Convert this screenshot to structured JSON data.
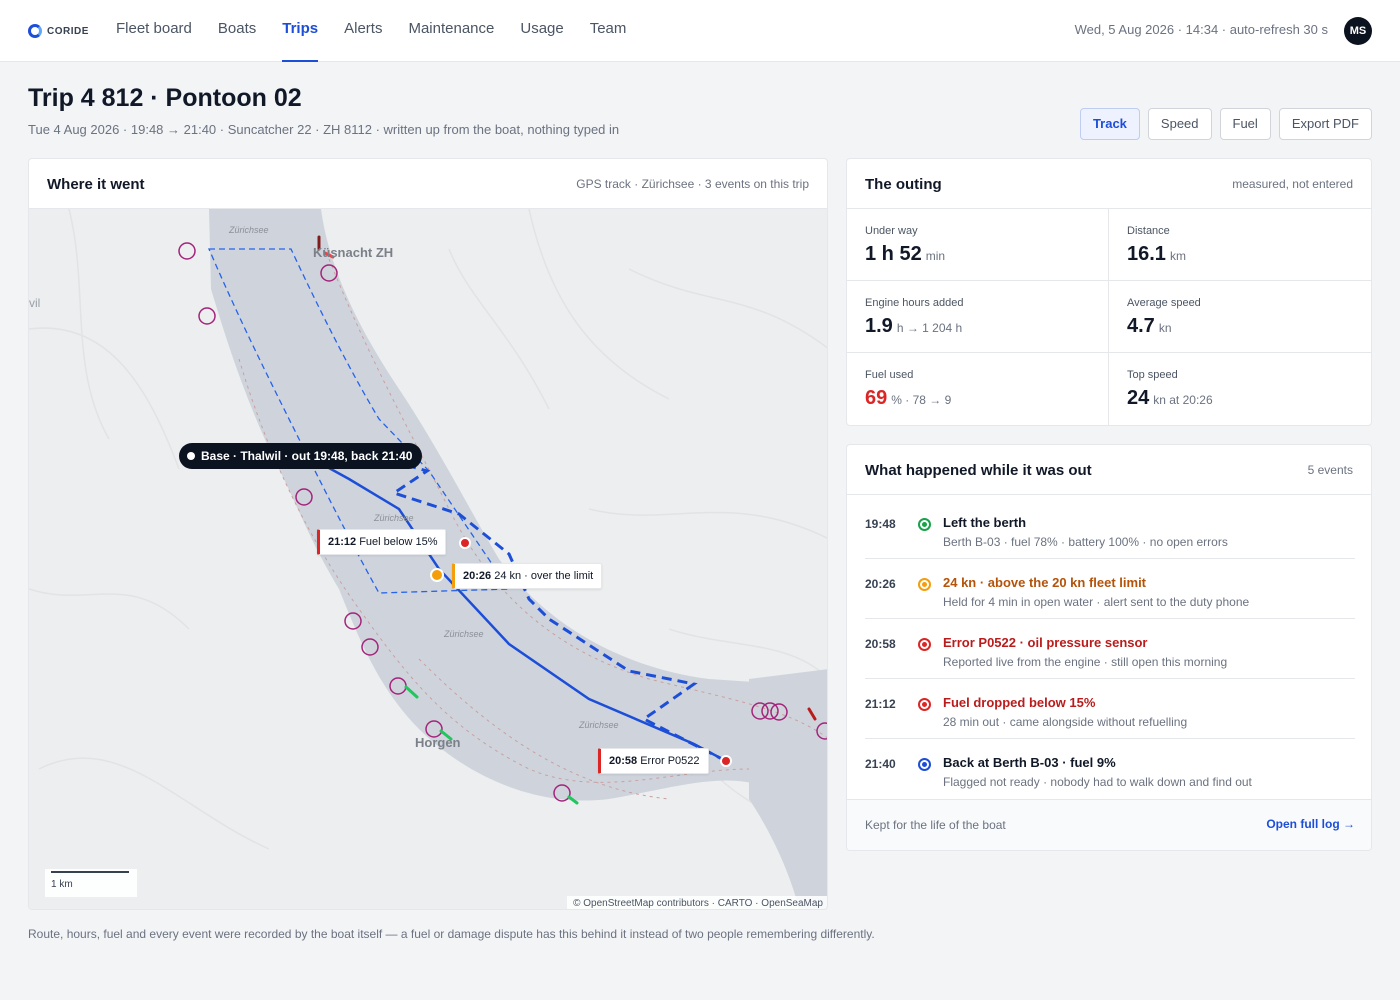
{
  "brand": {
    "name": "CORIDE"
  },
  "nav": [
    {
      "label": "Fleet board",
      "active": false
    },
    {
      "label": "Boats",
      "active": false
    },
    {
      "label": "Trips",
      "active": true
    },
    {
      "label": "Alerts",
      "active": false
    },
    {
      "label": "Maintenance",
      "active": false
    },
    {
      "label": "Usage",
      "active": false
    },
    {
      "label": "Team",
      "active": false
    }
  ],
  "status": {
    "clock": "Wed, 5 Aug 2026 · 14:34 · auto-refresh 30 s"
  },
  "user": {
    "initials": "MS"
  },
  "trip": {
    "title": "Trip 4 812 · Pontoon 02",
    "subtitle": "Tue 4 Aug 2026 · 19:48 → 21:40 · Suncatcher 22 · ZH 8112 · written up from the boat, nothing typed in"
  },
  "views": [
    {
      "label": "Track",
      "active": true
    },
    {
      "label": "Speed",
      "active": false
    },
    {
      "label": "Fuel",
      "active": false
    },
    {
      "label": "Export PDF",
      "active": false
    }
  ],
  "map": {
    "title": "Where it went",
    "note": "GPS track · Zürichsee · 3 events on this trip",
    "places": [
      "Küsnacht ZH",
      "Horgen"
    ],
    "lake_labels": [
      "Zürichsee",
      "Zürichsee",
      "Zürichsee",
      "Zürichsee"
    ],
    "edge_label": "vil",
    "base_label": "Base · Thalwil · out 19:48, back 21:40",
    "flags": [
      {
        "time": "21:12",
        "text": "Fuel below 15%",
        "tone": "red"
      },
      {
        "time": "20:26",
        "text": "24 kn · over the limit",
        "tone": "amber"
      },
      {
        "time": "20:58",
        "text": "Error P0522",
        "tone": "red"
      }
    ],
    "scale_label": "1 km",
    "attribution": "© OpenStreetMap contributors · CARTO · OpenSeaMap",
    "colors": {
      "track": "#1d4ed8",
      "water": "#cfd4dc",
      "land": "#eceeef",
      "marker": "#a3247a"
    }
  },
  "outing": {
    "title": "The outing",
    "note": "measured, not entered",
    "stats": [
      {
        "label": "Under way",
        "value": "1 h 52",
        "unit": "min",
        "tone": "normal"
      },
      {
        "label": "Distance",
        "value": "16.1",
        "unit": "km",
        "tone": "normal"
      },
      {
        "label": "Engine hours added",
        "value": "1.9",
        "unit": "h → 1 204 h",
        "tone": "normal"
      },
      {
        "label": "Average speed",
        "value": "4.7",
        "unit": "kn",
        "tone": "normal"
      },
      {
        "label": "Fuel used",
        "value": "69",
        "unit": "% · 78 → 9",
        "tone": "danger"
      },
      {
        "label": "Top speed",
        "value": "24",
        "unit": "kn at 20:26",
        "tone": "normal"
      }
    ]
  },
  "events": {
    "title": "What happened while it was out",
    "count": "5 events",
    "items": [
      {
        "time": "19:48",
        "tone": "green",
        "title": "Left the berth",
        "detail": "Berth B-03 · fuel 78% · battery 100% · no open errors"
      },
      {
        "time": "20:26",
        "tone": "amber",
        "title": "24 kn · above the 20 kn fleet limit",
        "detail": "Held for 4 min in open water · alert sent to the duty phone"
      },
      {
        "time": "20:58",
        "tone": "red",
        "title": "Error P0522 · oil pressure sensor",
        "detail": "Reported live from the engine · still open this morning"
      },
      {
        "time": "21:12",
        "tone": "red",
        "title": "Fuel dropped below 15%",
        "detail": "28 min out · came alongside without refuelling"
      },
      {
        "time": "21:40",
        "tone": "blue",
        "title": "Back at Berth B-03 · fuel 9%",
        "detail": "Flagged not ready · nobody had to walk down and find out"
      }
    ],
    "footer_note": "Kept for the life of the boat",
    "footer_link": "Open full log →"
  },
  "footer": {
    "text": "Route, hours, fuel and every event were recorded by the boat itself — a fuel or damage dispute has this behind it instead of two people remembering differently."
  }
}
